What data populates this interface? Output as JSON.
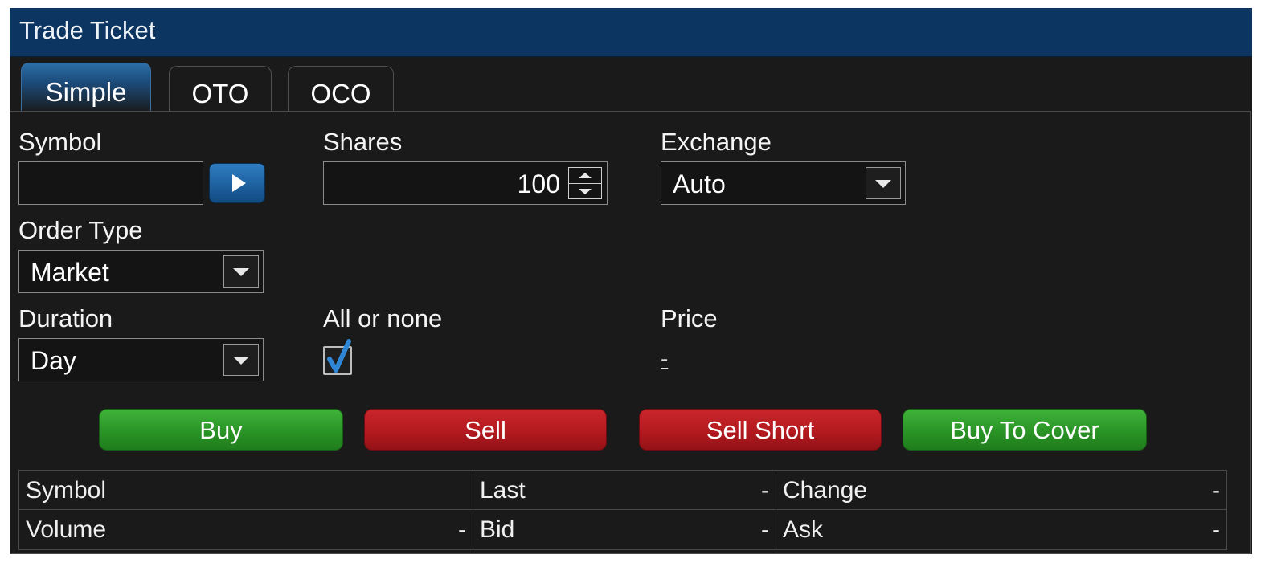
{
  "window": {
    "title": "Trade Ticket"
  },
  "tabs": [
    {
      "label": "Simple",
      "active": true
    },
    {
      "label": "OTO",
      "active": false
    },
    {
      "label": "OCO",
      "active": false
    }
  ],
  "form": {
    "symbol": {
      "label": "Symbol",
      "value": "",
      "go_icon": "play-icon"
    },
    "shares": {
      "label": "Shares",
      "value": "100"
    },
    "exchange": {
      "label": "Exchange",
      "value": "Auto"
    },
    "order_type": {
      "label": "Order Type",
      "value": "Market"
    },
    "duration": {
      "label": "Duration",
      "value": "Day"
    },
    "all_or_none": {
      "label": "All or none",
      "checked": true
    },
    "price": {
      "label": "Price",
      "value": "-"
    }
  },
  "actions": {
    "buy": "Buy",
    "sell": "Sell",
    "sell_short": "Sell Short",
    "buy_to_cover": "Buy To Cover"
  },
  "quote": {
    "symbol": {
      "label": "Symbol",
      "value": ""
    },
    "last": {
      "label": "Last",
      "value": "-"
    },
    "change": {
      "label": "Change",
      "value": "-"
    },
    "volume": {
      "label": "Volume",
      "value": "-"
    },
    "bid": {
      "label": "Bid",
      "value": "-"
    },
    "ask": {
      "label": "Ask",
      "value": "-"
    }
  },
  "colors": {
    "titlebar": "#0c3561",
    "buy_green": "#2a9426",
    "sell_red": "#b31a1f",
    "check_blue": "#2f86d6"
  }
}
